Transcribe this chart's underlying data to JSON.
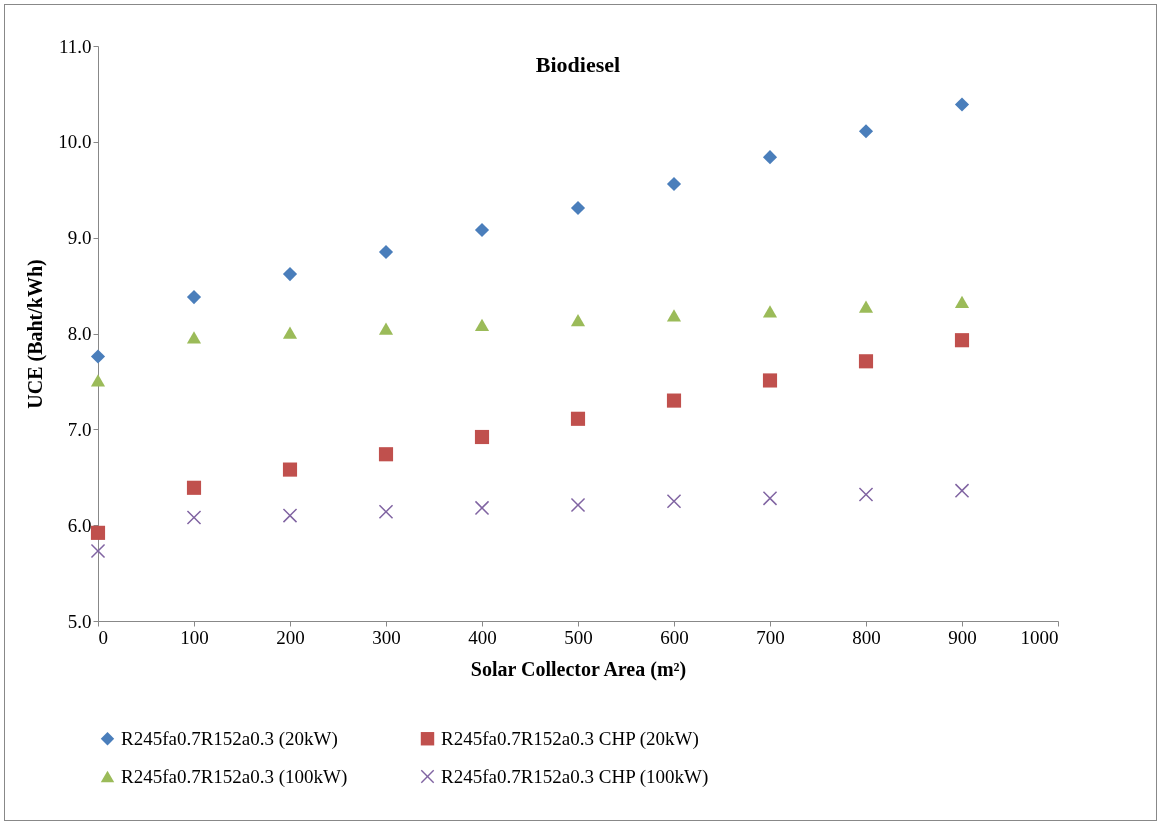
{
  "chart_data": {
    "type": "scatter",
    "title": "Biodiesel",
    "xlabel": "Solar Collector Area (m²)",
    "ylabel": "UCE (Baht/kWh)",
    "x": [
      0,
      100,
      200,
      300,
      400,
      500,
      600,
      700,
      800,
      900
    ],
    "xlim": [
      0,
      1000
    ],
    "xticks": [
      0,
      100,
      200,
      300,
      400,
      500,
      600,
      700,
      800,
      900,
      1000
    ],
    "ylim": [
      5,
      11
    ],
    "yticks": [
      {
        "value": 5,
        "label": "5.0"
      },
      {
        "value": 6,
        "label": "6.0"
      },
      {
        "value": 7,
        "label": "7.0"
      },
      {
        "value": 8,
        "label": "8.0"
      },
      {
        "value": 9,
        "label": "9.0"
      },
      {
        "value": 10,
        "label": "10.0"
      },
      {
        "value": 11,
        "label": "11.0"
      }
    ],
    "grid": false,
    "legend": "bottom",
    "series": [
      {
        "name": "R245fa0.7R152a0.3 (20kW)",
        "color": "#4a7ebb",
        "marker": "diamond",
        "values": [
          7.76,
          8.38,
          8.62,
          8.85,
          9.08,
          9.31,
          9.56,
          9.84,
          10.11,
          10.39
        ]
      },
      {
        "name": "R245fa0.7R152a0.3 CHP (20kW)",
        "color": "#c0504d",
        "marker": "square",
        "values": [
          5.92,
          6.39,
          6.58,
          6.74,
          6.92,
          7.11,
          7.3,
          7.51,
          7.71,
          7.93
        ]
      },
      {
        "name": "R245fa0.7R152a0.3 (100kW)",
        "color": "#9bbb59",
        "marker": "triangle",
        "values": [
          7.51,
          7.96,
          8.01,
          8.05,
          8.09,
          8.14,
          8.19,
          8.23,
          8.28,
          8.33
        ]
      },
      {
        "name": "R245fa0.7R152a0.3 CHP (100kW)",
        "color": "#8064a2",
        "marker": "cross",
        "values": [
          5.73,
          6.08,
          6.1,
          6.14,
          6.18,
          6.21,
          6.25,
          6.28,
          6.32,
          6.36
        ]
      }
    ]
  }
}
